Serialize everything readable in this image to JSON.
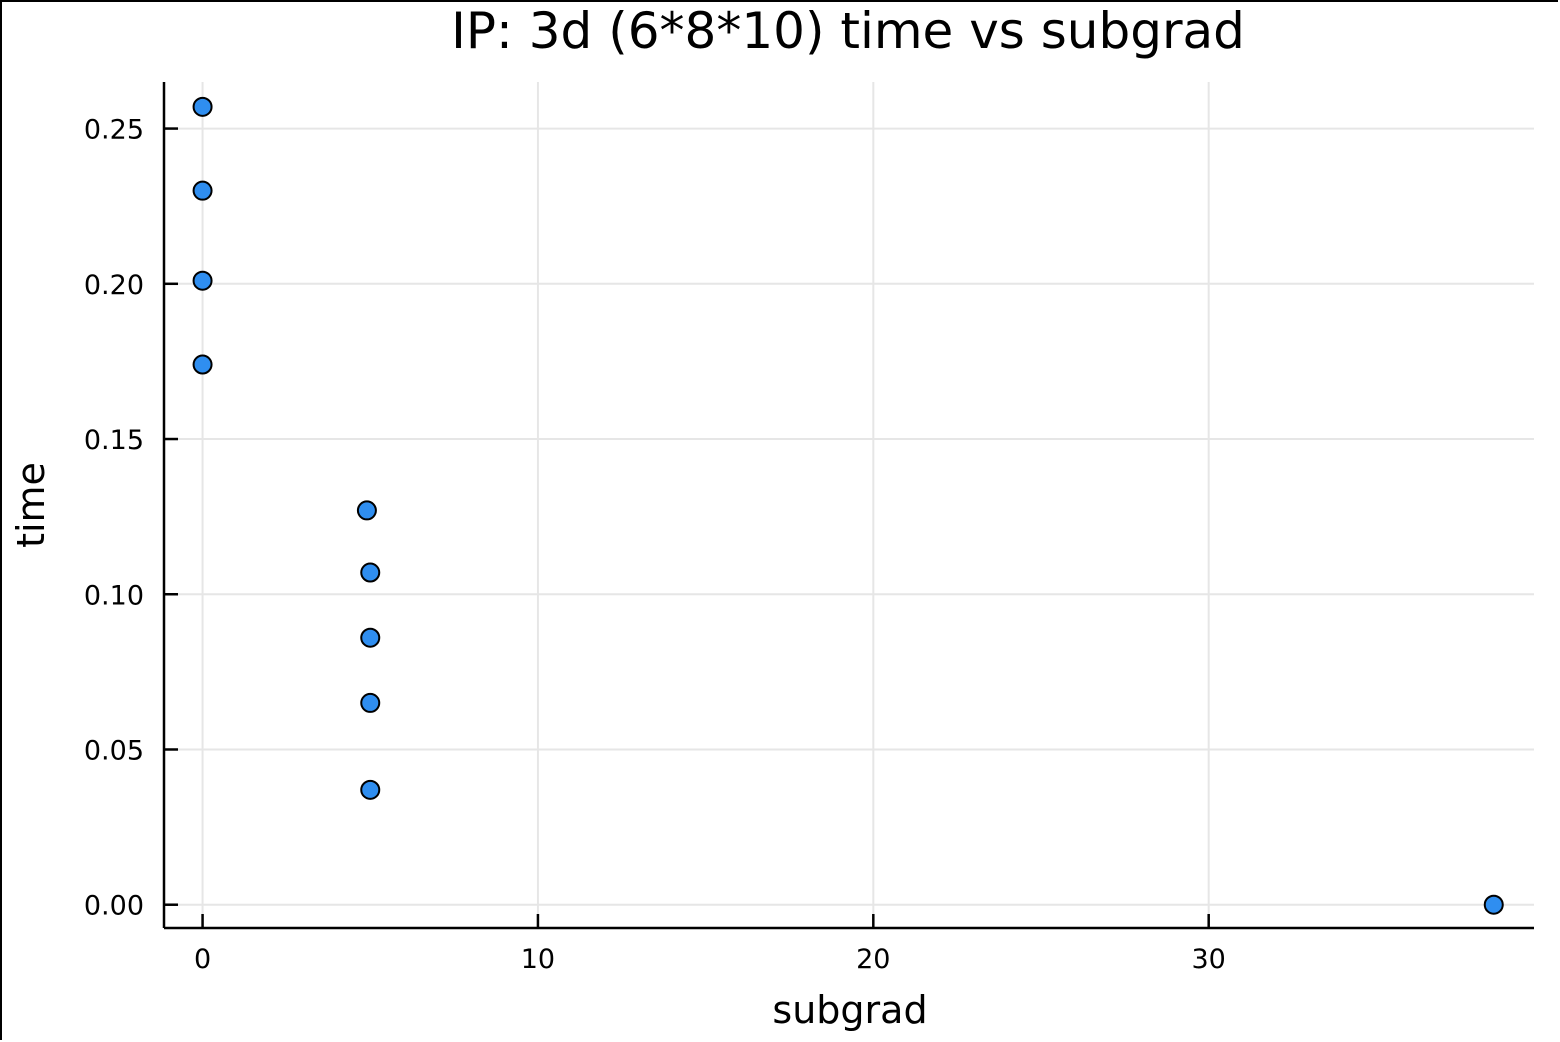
{
  "chart_data": {
    "type": "scatter",
    "title": "IP: 3d (6*8*10) time vs subgrad",
    "xlabel": "subgrad",
    "ylabel": "time",
    "xlim": [
      -1.15,
      39.7
    ],
    "ylim": [
      -0.0075,
      0.265
    ],
    "xticks": [
      0,
      10,
      20,
      30
    ],
    "xtick_labels": [
      "0",
      "10",
      "20",
      "30"
    ],
    "yticks": [
      0.0,
      0.05,
      0.1,
      0.15,
      0.2,
      0.25
    ],
    "ytick_labels": [
      "0.00",
      "0.05",
      "0.10",
      "0.15",
      "0.20",
      "0.25"
    ],
    "grid": true,
    "legend": "none",
    "marker_color": "#2f8ef0",
    "points": [
      {
        "x": 0,
        "y": 0.257
      },
      {
        "x": 0,
        "y": 0.23
      },
      {
        "x": 0,
        "y": 0.201
      },
      {
        "x": 0,
        "y": 0.174
      },
      {
        "x": 4.9,
        "y": 0.127
      },
      {
        "x": 5.0,
        "y": 0.107
      },
      {
        "x": 5.0,
        "y": 0.086
      },
      {
        "x": 5.0,
        "y": 0.065
      },
      {
        "x": 5.0,
        "y": 0.037
      },
      {
        "x": 38.5,
        "y": 0.0
      }
    ]
  }
}
